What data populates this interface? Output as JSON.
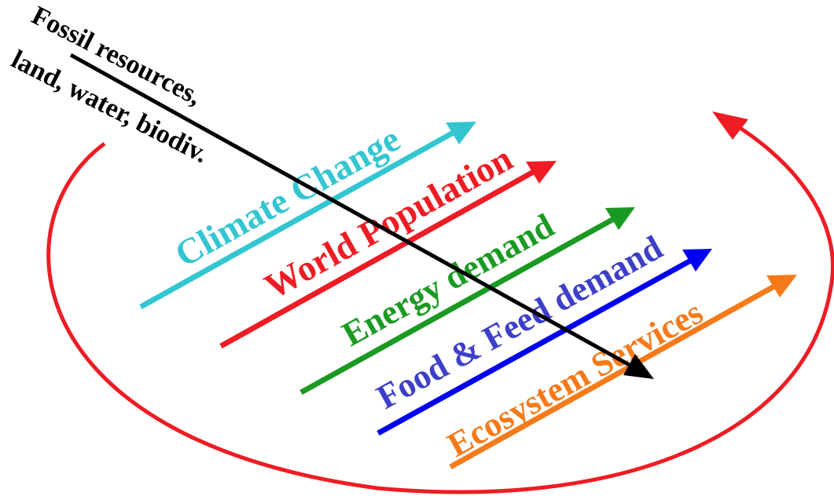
{
  "fossil_label": {
    "line1": "Fossil resources,",
    "line2": "land, water, biodiv."
  },
  "drivers": [
    {
      "label": "Climate Change",
      "color": "#33c6d1"
    },
    {
      "label": "World Population",
      "color": "#ee1c24"
    },
    {
      "label": "Energy demand",
      "color": "#1a9a22"
    },
    {
      "label": "Food & Feed demand",
      "color": "#3d3fc8"
    },
    {
      "label": "Ecosystem Services",
      "color": "#f57a1a"
    }
  ],
  "colors": {
    "cycle_arrow": "#ee1c24",
    "fossil_arrow": "#000000",
    "food_arrow": "#0000ee"
  }
}
